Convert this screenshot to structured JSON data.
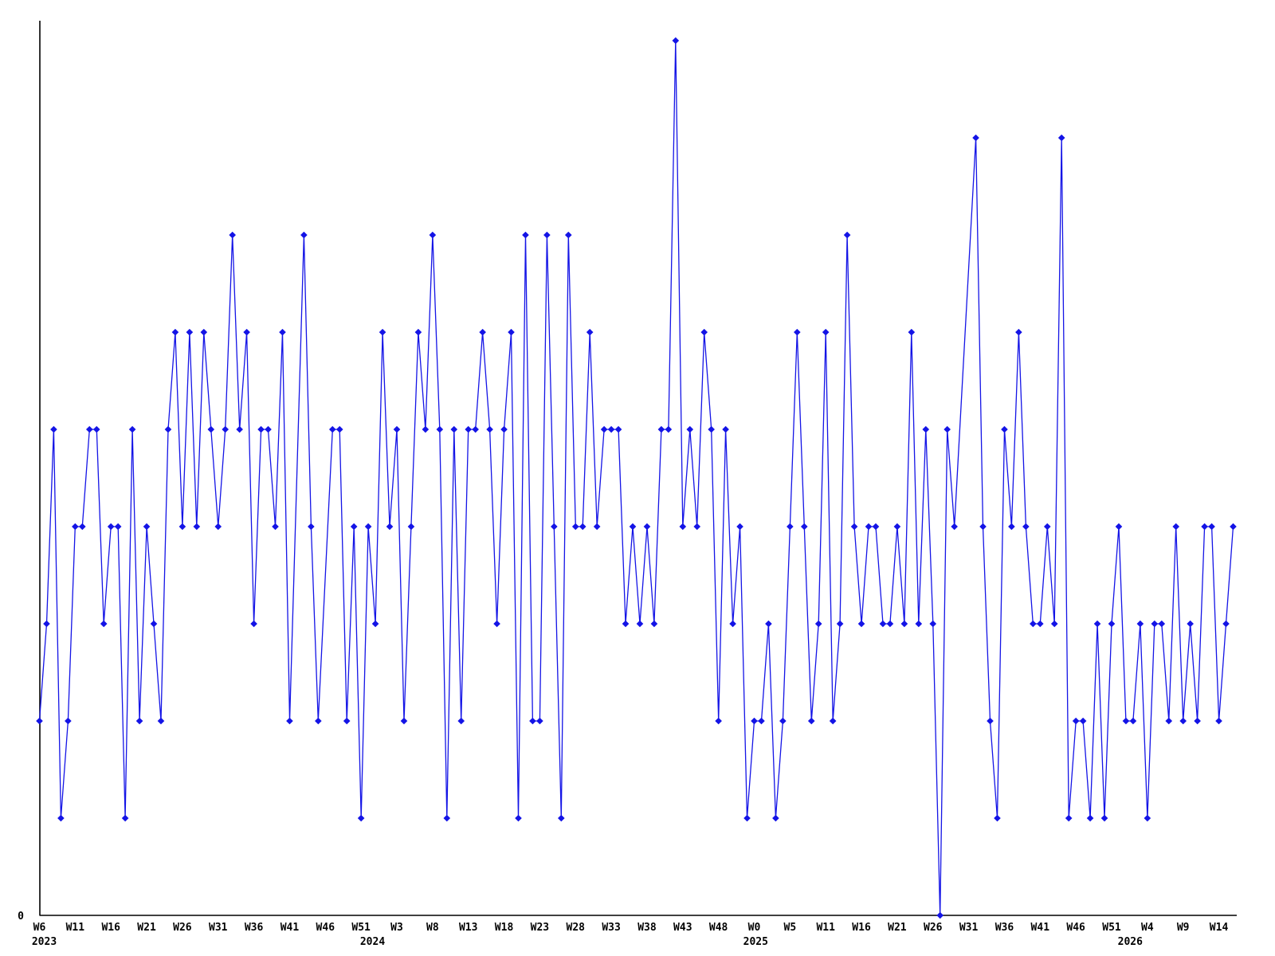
{
  "app": {
    "background_color": "#ffffff",
    "description": "Weekly time-series line chart with diamond markers"
  },
  "chart_data": {
    "type": "line",
    "title": "",
    "xlabel": "",
    "ylabel": "",
    "grid": "off",
    "legend": "none",
    "line_color": "#1414e6",
    "axis_color": "#000000",
    "text_color": "#000000",
    "marker": "diamond",
    "x_unit": "weeks-since-W6-2023",
    "ylim": [
      0,
      9.35
    ],
    "y_axis": {
      "tick_labels": [
        "0"
      ],
      "tick_values": [
        0
      ]
    },
    "x_axis": {
      "tick_step_weeks": 5,
      "tick_labels": [
        "W6",
        "W11",
        "W16",
        "W21",
        "W26",
        "W31",
        "W36",
        "W41",
        "W46",
        "W51",
        "W3",
        "W8",
        "W13",
        "W18",
        "W23",
        "W28",
        "W33",
        "W38",
        "W43",
        "W48",
        "W0",
        "W5",
        "W11",
        "W16",
        "W21",
        "W26",
        "W31",
        "W36",
        "W41",
        "W46",
        "W51",
        "W4",
        "W9",
        "W14"
      ],
      "year_labels": [
        {
          "text": "2023",
          "week_index": 0.67
        },
        {
          "text": "2024",
          "week_index": 46.6
        },
        {
          "text": "2025",
          "week_index": 100.2
        },
        {
          "text": "2026",
          "week_index": 152.6
        }
      ]
    },
    "series": [
      {
        "name": "weekly-values",
        "points": [
          [
            0,
            2
          ],
          [
            1,
            3
          ],
          [
            2,
            5
          ],
          [
            3,
            1
          ],
          [
            4,
            2
          ],
          [
            5,
            4
          ],
          [
            6,
            4
          ],
          [
            7,
            5
          ],
          [
            8,
            5
          ],
          [
            9,
            3
          ],
          [
            10,
            4
          ],
          [
            11,
            4
          ],
          [
            12,
            1
          ],
          [
            13,
            5
          ],
          [
            14,
            2
          ],
          [
            15,
            4
          ],
          [
            16,
            3
          ],
          [
            17,
            2
          ],
          [
            18,
            5
          ],
          [
            19,
            6
          ],
          [
            20,
            4
          ],
          [
            21,
            6
          ],
          [
            22,
            4
          ],
          [
            23,
            6
          ],
          [
            24,
            5
          ],
          [
            25,
            4
          ],
          [
            26,
            5
          ],
          [
            27,
            7
          ],
          [
            28,
            5
          ],
          [
            29,
            6
          ],
          [
            30,
            3
          ],
          [
            31,
            5
          ],
          [
            32,
            5
          ],
          [
            33,
            4
          ],
          [
            34,
            6
          ],
          [
            35,
            2
          ],
          [
            37,
            7
          ],
          [
            38,
            4
          ],
          [
            39,
            2
          ],
          [
            41,
            5
          ],
          [
            42,
            5
          ],
          [
            43,
            2
          ],
          [
            44,
            4
          ],
          [
            45,
            1
          ],
          [
            46,
            4
          ],
          [
            47,
            3
          ],
          [
            48,
            6
          ],
          [
            49,
            4
          ],
          [
            50,
            5
          ],
          [
            51,
            2
          ],
          [
            52,
            4
          ],
          [
            53,
            6
          ],
          [
            54,
            5
          ],
          [
            55,
            7
          ],
          [
            56,
            5
          ],
          [
            57,
            1
          ],
          [
            58,
            5
          ],
          [
            59,
            2
          ],
          [
            60,
            5
          ],
          [
            61,
            5
          ],
          [
            62,
            6
          ],
          [
            63,
            5
          ],
          [
            64,
            3
          ],
          [
            65,
            5
          ],
          [
            66,
            6
          ],
          [
            67,
            1
          ],
          [
            68,
            7
          ],
          [
            69,
            2
          ],
          [
            70,
            2
          ],
          [
            71,
            7
          ],
          [
            72,
            4
          ],
          [
            73,
            1
          ],
          [
            74,
            7
          ],
          [
            75,
            4
          ],
          [
            76,
            4
          ],
          [
            77,
            6
          ],
          [
            78,
            4
          ],
          [
            79,
            5
          ],
          [
            80,
            5
          ],
          [
            81,
            5
          ],
          [
            82,
            3
          ],
          [
            83,
            4
          ],
          [
            84,
            3
          ],
          [
            85,
            4
          ],
          [
            86,
            3
          ],
          [
            87,
            5
          ],
          [
            88,
            5
          ],
          [
            89,
            9
          ],
          [
            90,
            4
          ],
          [
            91,
            5
          ],
          [
            92,
            4
          ],
          [
            93,
            6
          ],
          [
            94,
            5
          ],
          [
            95,
            2
          ],
          [
            96,
            5
          ],
          [
            97,
            3
          ],
          [
            98,
            4
          ],
          [
            99,
            1
          ],
          [
            100,
            2
          ],
          [
            101,
            2
          ],
          [
            102,
            3
          ],
          [
            103,
            1
          ],
          [
            104,
            2
          ],
          [
            105,
            4
          ],
          [
            106,
            6
          ],
          [
            107,
            4
          ],
          [
            108,
            2
          ],
          [
            109,
            3
          ],
          [
            110,
            6
          ],
          [
            111,
            2
          ],
          [
            112,
            3
          ],
          [
            113,
            7
          ],
          [
            114,
            4
          ],
          [
            115,
            3
          ],
          [
            116,
            4
          ],
          [
            117,
            4
          ],
          [
            118,
            3
          ],
          [
            119,
            3
          ],
          [
            120,
            4
          ],
          [
            121,
            3
          ],
          [
            122,
            6
          ],
          [
            123,
            3
          ],
          [
            124,
            5
          ],
          [
            125,
            3
          ],
          [
            126,
            0
          ],
          [
            127,
            5
          ],
          [
            128,
            4
          ],
          [
            131,
            8
          ],
          [
            132,
            4
          ],
          [
            133,
            2
          ],
          [
            134,
            1
          ],
          [
            135,
            5
          ],
          [
            136,
            4
          ],
          [
            137,
            6
          ],
          [
            138,
            4
          ],
          [
            139,
            3
          ],
          [
            140,
            3
          ],
          [
            141,
            4
          ],
          [
            142,
            3
          ],
          [
            143,
            8
          ],
          [
            144,
            1
          ],
          [
            145,
            2
          ],
          [
            146,
            2
          ],
          [
            147,
            1
          ],
          [
            148,
            3
          ],
          [
            149,
            1
          ],
          [
            150,
            3
          ],
          [
            151,
            4
          ],
          [
            152,
            2
          ],
          [
            153,
            2
          ],
          [
            154,
            3
          ],
          [
            155,
            1
          ],
          [
            156,
            3
          ],
          [
            157,
            3
          ],
          [
            158,
            2
          ],
          [
            159,
            4
          ],
          [
            160,
            2
          ],
          [
            161,
            3
          ],
          [
            162,
            2
          ],
          [
            163,
            4
          ],
          [
            164,
            4
          ],
          [
            165,
            2
          ],
          [
            166,
            3
          ],
          [
            167,
            4
          ]
        ]
      }
    ]
  }
}
